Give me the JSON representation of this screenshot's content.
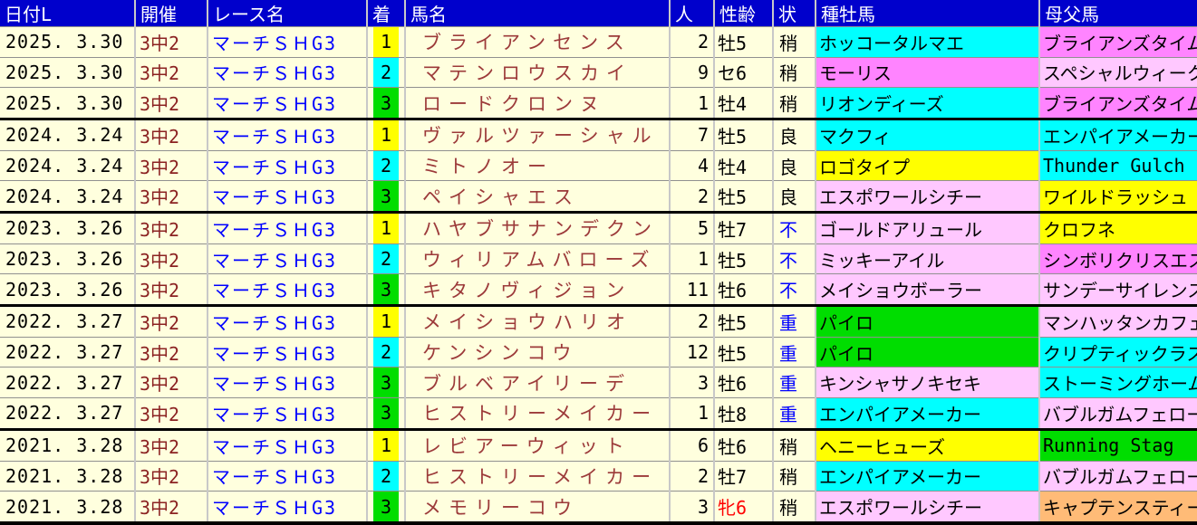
{
  "palette": {
    "header_bg": "#0000CC",
    "header_text": "#FFFFFF",
    "cell_bg": "#FFFFDE",
    "rank_bg": {
      "1": "#FFFF00",
      "2": "#00FFFF",
      "3": "#00DD00"
    },
    "race_text": "#0000FF",
    "venue_text": "#8B2222",
    "horse_text": "#9C3A3A",
    "cond_wet_text": "#0000FF",
    "filly_text": "#FF0000",
    "sire_cyan": "#00FFFF",
    "sire_magenta": "#FF84FF",
    "sire_lightpink": "#FFC8FF",
    "sire_yellow": "#FFFF00",
    "sire_green": "#00DD00",
    "sire_orange": "#FFBB77"
  },
  "table": {
    "columns": [
      {
        "key": "date",
        "label": "日付L"
      },
      {
        "key": "venue",
        "label": "開催"
      },
      {
        "key": "race",
        "label": "レース名"
      },
      {
        "key": "rank",
        "label": "着"
      },
      {
        "key": "horse",
        "label": "馬名"
      },
      {
        "key": "pop",
        "label": "人"
      },
      {
        "key": "sexage",
        "label": "性齢"
      },
      {
        "key": "cond",
        "label": "状"
      },
      {
        "key": "sire",
        "label": "種牡馬"
      },
      {
        "key": "bms",
        "label": "母父馬"
      }
    ],
    "rows": [
      {
        "date": "2025. 3.30",
        "venue": "3中2",
        "race": "マーチＳＨG3",
        "rank": "1",
        "horse": "ブライアンセンス",
        "pop": "2",
        "sexage": "牡5",
        "sexage_color": "#000000",
        "cond": "稍",
        "cond_color": "#000000",
        "sire": "ホッコータルマエ",
        "sire_bg": "#00FFFF",
        "bms": "ブライアンズタイム",
        "bms_bg": "#FF84FF",
        "group_start": false
      },
      {
        "date": "2025. 3.30",
        "venue": "3中2",
        "race": "マーチＳＨG3",
        "rank": "2",
        "horse": "マテンロウスカイ",
        "pop": "9",
        "sexage": "セ6",
        "sexage_color": "#000000",
        "cond": "稍",
        "cond_color": "#000000",
        "sire": "モーリス",
        "sire_bg": "#FF84FF",
        "bms": "スペシャルウィーク",
        "bms_bg": "#FFC8FF",
        "group_start": false
      },
      {
        "date": "2025. 3.30",
        "venue": "3中2",
        "race": "マーチＳＨG3",
        "rank": "3",
        "horse": "ロードクロンヌ",
        "pop": "1",
        "sexage": "牡4",
        "sexage_color": "#000000",
        "cond": "稍",
        "cond_color": "#000000",
        "sire": "リオンディーズ",
        "sire_bg": "#00FFFF",
        "bms": "ブライアンズタイム",
        "bms_bg": "#FF84FF",
        "group_start": false
      },
      {
        "date": "2024. 3.24",
        "venue": "3中2",
        "race": "マーチＳＨG3",
        "rank": "1",
        "horse": "ヴァルツァーシャル",
        "pop": "7",
        "sexage": "牡5",
        "sexage_color": "#000000",
        "cond": "良",
        "cond_color": "#000000",
        "sire": "マクフィ",
        "sire_bg": "#00FFFF",
        "bms": "エンパイアメーカー",
        "bms_bg": "#00FFFF",
        "group_start": true
      },
      {
        "date": "2024. 3.24",
        "venue": "3中2",
        "race": "マーチＳＨG3",
        "rank": "2",
        "horse": "ミトノオー",
        "pop": "4",
        "sexage": "牡4",
        "sexage_color": "#000000",
        "cond": "良",
        "cond_color": "#000000",
        "sire": "ロゴタイプ",
        "sire_bg": "#FFFF00",
        "bms": "Thunder Gulch",
        "bms_bg": "#00FFFF",
        "group_start": false
      },
      {
        "date": "2024. 3.24",
        "venue": "3中2",
        "race": "マーチＳＨG3",
        "rank": "3",
        "horse": "ペイシャエス",
        "pop": "2",
        "sexage": "牡5",
        "sexage_color": "#000000",
        "cond": "良",
        "cond_color": "#000000",
        "sire": "エスポワールシチー",
        "sire_bg": "#FFC8FF",
        "bms": "ワイルドラッシュ",
        "bms_bg": "#FFFF00",
        "group_start": false
      },
      {
        "date": "2023. 3.26",
        "venue": "3中2",
        "race": "マーチＳＨG3",
        "rank": "1",
        "horse": "ハヤブサナンデクン",
        "pop": "5",
        "sexage": "牡7",
        "sexage_color": "#000000",
        "cond": "不",
        "cond_color": "#0000FF",
        "sire": "ゴールドアリュール",
        "sire_bg": "#FFC8FF",
        "bms": "クロフネ",
        "bms_bg": "#FFFF00",
        "group_start": true
      },
      {
        "date": "2023. 3.26",
        "venue": "3中2",
        "race": "マーチＳＨG3",
        "rank": "2",
        "horse": "ウィリアムバローズ",
        "pop": "1",
        "sexage": "牡5",
        "sexage_color": "#000000",
        "cond": "不",
        "cond_color": "#0000FF",
        "sire": "ミッキーアイル",
        "sire_bg": "#FFC8FF",
        "bms": "シンボリクリスエス",
        "bms_bg": "#FF84FF",
        "group_start": false
      },
      {
        "date": "2023. 3.26",
        "venue": "3中2",
        "race": "マーチＳＨG3",
        "rank": "3",
        "horse": "キタノヴィジョン",
        "pop": "11",
        "sexage": "牡6",
        "sexage_color": "#000000",
        "cond": "不",
        "cond_color": "#0000FF",
        "sire": "メイショウボーラー",
        "sire_bg": "#FFC8FF",
        "bms": "サンデーサイレンス",
        "bms_bg": "#FFC8FF",
        "group_start": false
      },
      {
        "date": "2022. 3.27",
        "venue": "3中2",
        "race": "マーチＳＨG3",
        "rank": "1",
        "horse": "メイショウハリオ",
        "pop": "2",
        "sexage": "牡5",
        "sexage_color": "#000000",
        "cond": "重",
        "cond_color": "#0000FF",
        "sire": "パイロ",
        "sire_bg": "#00DD00",
        "bms": "マンハッタンカフェ",
        "bms_bg": "#FFC8FF",
        "group_start": true
      },
      {
        "date": "2022. 3.27",
        "venue": "3中2",
        "race": "マーチＳＨG3",
        "rank": "2",
        "horse": "ケンシンコウ",
        "pop": "12",
        "sexage": "牡5",
        "sexage_color": "#000000",
        "cond": "重",
        "cond_color": "#0000FF",
        "sire": "パイロ",
        "sire_bg": "#00DD00",
        "bms": "クリプティックラスカル",
        "bms_bg": "#00FFFF",
        "group_start": false
      },
      {
        "date": "2022. 3.27",
        "venue": "3中2",
        "race": "マーチＳＨG3",
        "rank": "3",
        "horse": "ブルベアイリーデ",
        "pop": "3",
        "sexage": "牡6",
        "sexage_color": "#000000",
        "cond": "重",
        "cond_color": "#0000FF",
        "sire": "キンシャサノキセキ",
        "sire_bg": "#FFC8FF",
        "bms": "ストーミングホーム",
        "bms_bg": "#00FFFF",
        "group_start": false
      },
      {
        "date": "2022. 3.27",
        "venue": "3中2",
        "race": "マーチＳＨG3",
        "rank": "3",
        "horse": "ヒストリーメイカー",
        "pop": "1",
        "sexage": "牡8",
        "sexage_color": "#000000",
        "cond": "重",
        "cond_color": "#0000FF",
        "sire": "エンパイアメーカー",
        "sire_bg": "#00FFFF",
        "bms": "バブルガムフェロー",
        "bms_bg": "#FFC8FF",
        "group_start": false
      },
      {
        "date": "2021. 3.28",
        "venue": "3中2",
        "race": "マーチＳＨG3",
        "rank": "1",
        "horse": "レビアーウィット",
        "pop": "6",
        "sexage": "牡6",
        "sexage_color": "#000000",
        "cond": "稍",
        "cond_color": "#000000",
        "sire": "ヘニーヒューズ",
        "sire_bg": "#FFFF00",
        "bms": "Running Stag",
        "bms_bg": "#00DD00",
        "group_start": true
      },
      {
        "date": "2021. 3.28",
        "venue": "3中2",
        "race": "マーチＳＨG3",
        "rank": "2",
        "horse": "ヒストリーメイカー",
        "pop": "2",
        "sexage": "牡7",
        "sexage_color": "#000000",
        "cond": "稍",
        "cond_color": "#000000",
        "sire": "エンパイアメーカー",
        "sire_bg": "#00FFFF",
        "bms": "バブルガムフェロー",
        "bms_bg": "#FFC8FF",
        "group_start": false
      },
      {
        "date": "2021. 3.28",
        "venue": "3中2",
        "race": "マーチＳＨG3",
        "rank": "3",
        "horse": "メモリーコウ",
        "pop": "3",
        "sexage": "牝6",
        "sexage_color": "#FF0000",
        "cond": "稍",
        "cond_color": "#000000",
        "sire": "エスポワールシチー",
        "sire_bg": "#FFC8FF",
        "bms": "キャプテンスティーヴ",
        "bms_bg": "#FFBB77",
        "group_start": false
      }
    ]
  }
}
